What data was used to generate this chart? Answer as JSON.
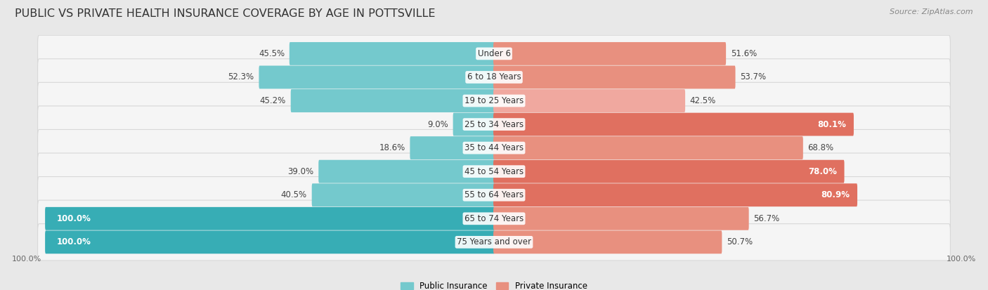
{
  "title": "PUBLIC VS PRIVATE HEALTH INSURANCE COVERAGE BY AGE IN POTTSVILLE",
  "source": "Source: ZipAtlas.com",
  "categories": [
    "Under 6",
    "6 to 18 Years",
    "19 to 25 Years",
    "25 to 34 Years",
    "35 to 44 Years",
    "45 to 54 Years",
    "55 to 64 Years",
    "65 to 74 Years",
    "75 Years and over"
  ],
  "public_values": [
    45.5,
    52.3,
    45.2,
    9.0,
    18.6,
    39.0,
    40.5,
    100.0,
    100.0
  ],
  "private_values": [
    51.6,
    53.7,
    42.5,
    80.1,
    68.8,
    78.0,
    80.9,
    56.7,
    50.7
  ],
  "public_color_full": "#37adb5",
  "public_color_light": "#74c9cd",
  "private_color_full": "#e07060",
  "private_color_light": "#f0a89f",
  "private_color_mid": "#e8907f",
  "bg_color": "#e8e8e8",
  "row_bg_color": "#f5f5f5",
  "row_border_color": "#d8d8d8",
  "max_value": 100.0,
  "legend_public": "Public Insurance",
  "legend_private": "Private Insurance",
  "title_fontsize": 11.5,
  "source_fontsize": 8,
  "label_fontsize": 8.5,
  "category_fontsize": 8.5,
  "axis_label_fontsize": 8
}
